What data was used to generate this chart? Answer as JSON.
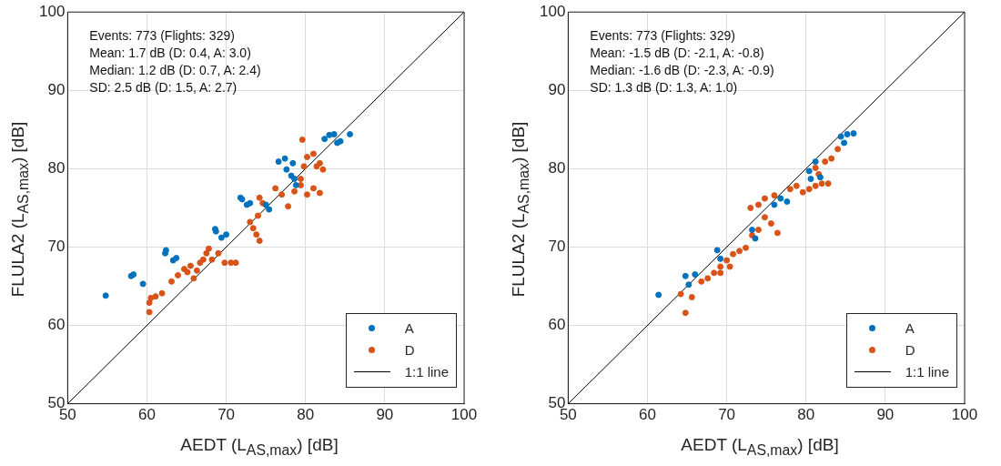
{
  "chart_data": [
    {
      "type": "scatter",
      "xlabel": "AEDT (L$_{AS,max}$) [dB]",
      "ylabel": "FLULA2 (L$_{AS,max}$) [dB]",
      "xlim": [
        50,
        100
      ],
      "ylim": [
        50,
        100
      ],
      "xticks": [
        50,
        60,
        70,
        80,
        90,
        100
      ],
      "yticks": [
        50,
        60,
        70,
        80,
        90,
        100
      ],
      "grid": true,
      "legend": "bottom right",
      "marker": "circle",
      "annotations": [
        "Events: 773 (Flights: 329)",
        "Mean: 1.7 dB (D: 0.4, A: 3.0)",
        "Median: 1.2 dB (D: 0.7, A: 2.4)",
        "SD: 2.5 dB (D: 1.5, A: 2.7)"
      ],
      "series": [
        {
          "name": "A",
          "color": "#0072bd",
          "x": [
            54.8,
            58.3,
            58.0,
            59.5,
            62.4,
            62.3,
            63.3,
            63.7,
            68.6,
            68.7,
            69.4,
            70.0,
            71.8,
            72.0,
            72.6,
            73.0,
            75.0,
            75.4,
            76.6,
            77.4,
            77.6,
            78.2,
            78.6,
            78.8,
            78.4,
            83.0,
            83.6,
            84.0,
            84.4,
            85.6,
            82.4
          ],
          "values": [
            63.8,
            66.5,
            66.3,
            65.3,
            69.6,
            69.2,
            68.3,
            68.6,
            72.3,
            72.0,
            71.2,
            71.6,
            76.3,
            76.1,
            75.4,
            75.6,
            75.4,
            74.8,
            80.9,
            81.3,
            79.9,
            79.1,
            78.7,
            77.9,
            80.7,
            84.3,
            84.4,
            83.3,
            83.5,
            84.4,
            83.8
          ]
        },
        {
          "name": "D",
          "color": "#d95319",
          "x": [
            60.3,
            60.5,
            61.1,
            61.9,
            60.3,
            63.1,
            63.9,
            64.7,
            65.1,
            65.5,
            65.9,
            66.3,
            66.7,
            67.1,
            67.5,
            67.8,
            68.2,
            69.0,
            69.8,
            70.6,
            71.2,
            73.0,
            73.4,
            73.8,
            74.2,
            74.0,
            74.6,
            74.2,
            76.2,
            77.0,
            77.8,
            78.6,
            79.4,
            79.8,
            80.2,
            81.0,
            81.4,
            81.8,
            82.2,
            79.4,
            80.2,
            81.0,
            81.8,
            79.6
          ],
          "values": [
            62.9,
            63.5,
            63.7,
            64.1,
            61.7,
            65.6,
            66.4,
            67.2,
            66.8,
            67.6,
            66.0,
            67.0,
            68.0,
            68.4,
            69.2,
            69.8,
            68.4,
            69.2,
            68.0,
            68.0,
            68.0,
            73.2,
            72.4,
            71.6,
            70.8,
            74.0,
            75.6,
            76.3,
            77.5,
            76.7,
            75.2,
            77.1,
            78.7,
            80.3,
            81.5,
            81.9,
            80.3,
            80.7,
            79.9,
            77.9,
            76.7,
            77.5,
            76.9,
            83.7
          ]
        },
        {
          "name": "1:1 line",
          "type": "line",
          "color": "#000000",
          "marker": "none",
          "x": [
            50,
            100
          ],
          "values": [
            50,
            100
          ]
        }
      ]
    },
    {
      "type": "scatter",
      "xlabel": "AEDT (L$_{AS,max}$) [dB]",
      "ylabel": "FLULA2 (L$_{AS,max}$) [dB]",
      "xlim": [
        50,
        100
      ],
      "ylim": [
        50,
        100
      ],
      "xticks": [
        50,
        60,
        70,
        80,
        90,
        100
      ],
      "yticks": [
        50,
        60,
        70,
        80,
        90,
        100
      ],
      "grid": true,
      "legend": "bottom right",
      "marker": "circle",
      "annotations": [
        "Events: 773 (Flights: 329)",
        "Mean: -1.5 dB (D: -2.1, A: -0.8)",
        "Median: -1.6 dB (D: -2.3, A: -0.9)",
        "SD: 1.3 dB (D: 1.3, A: 1.0)"
      ],
      "series": [
        {
          "name": "A",
          "color": "#0072bd",
          "x": [
            61.4,
            64.8,
            66.0,
            65.2,
            68.8,
            69.2,
            73.2,
            73.6,
            76.0,
            76.8,
            77.6,
            80.4,
            81.2,
            81.8,
            80.6,
            84.4,
            85.2,
            84.8,
            86.0
          ],
          "values": [
            63.9,
            66.3,
            66.5,
            65.2,
            69.6,
            68.5,
            72.2,
            71.1,
            75.4,
            76.2,
            75.8,
            79.7,
            80.9,
            78.9,
            78.7,
            84.1,
            84.4,
            83.3,
            84.5
          ]
        },
        {
          "name": "D",
          "color": "#d95319",
          "x": [
            64.2,
            64.8,
            65.6,
            66.8,
            67.6,
            68.4,
            69.2,
            70.0,
            70.8,
            71.6,
            72.4,
            73.2,
            74.0,
            74.8,
            75.6,
            76.4,
            74.0,
            74.8,
            76.0,
            73.0,
            78.0,
            78.8,
            79.6,
            80.4,
            81.2,
            82.0,
            82.8,
            81.2,
            82.4,
            83.2,
            84.0,
            81.6,
            70.4,
            69.2
          ],
          "values": [
            64.0,
            61.6,
            63.6,
            65.6,
            66.0,
            66.7,
            67.5,
            68.3,
            69.1,
            69.5,
            69.9,
            71.5,
            72.2,
            73.8,
            73.0,
            71.8,
            75.4,
            76.2,
            76.6,
            75.0,
            77.4,
            77.8,
            77.0,
            77.4,
            77.8,
            78.1,
            78.1,
            80.1,
            80.9,
            81.3,
            82.5,
            79.3,
            67.5,
            66.7
          ]
        },
        {
          "name": "1:1 line",
          "type": "line",
          "color": "#000000",
          "marker": "none",
          "x": [
            50,
            100
          ],
          "values": [
            50,
            100
          ]
        }
      ]
    }
  ]
}
